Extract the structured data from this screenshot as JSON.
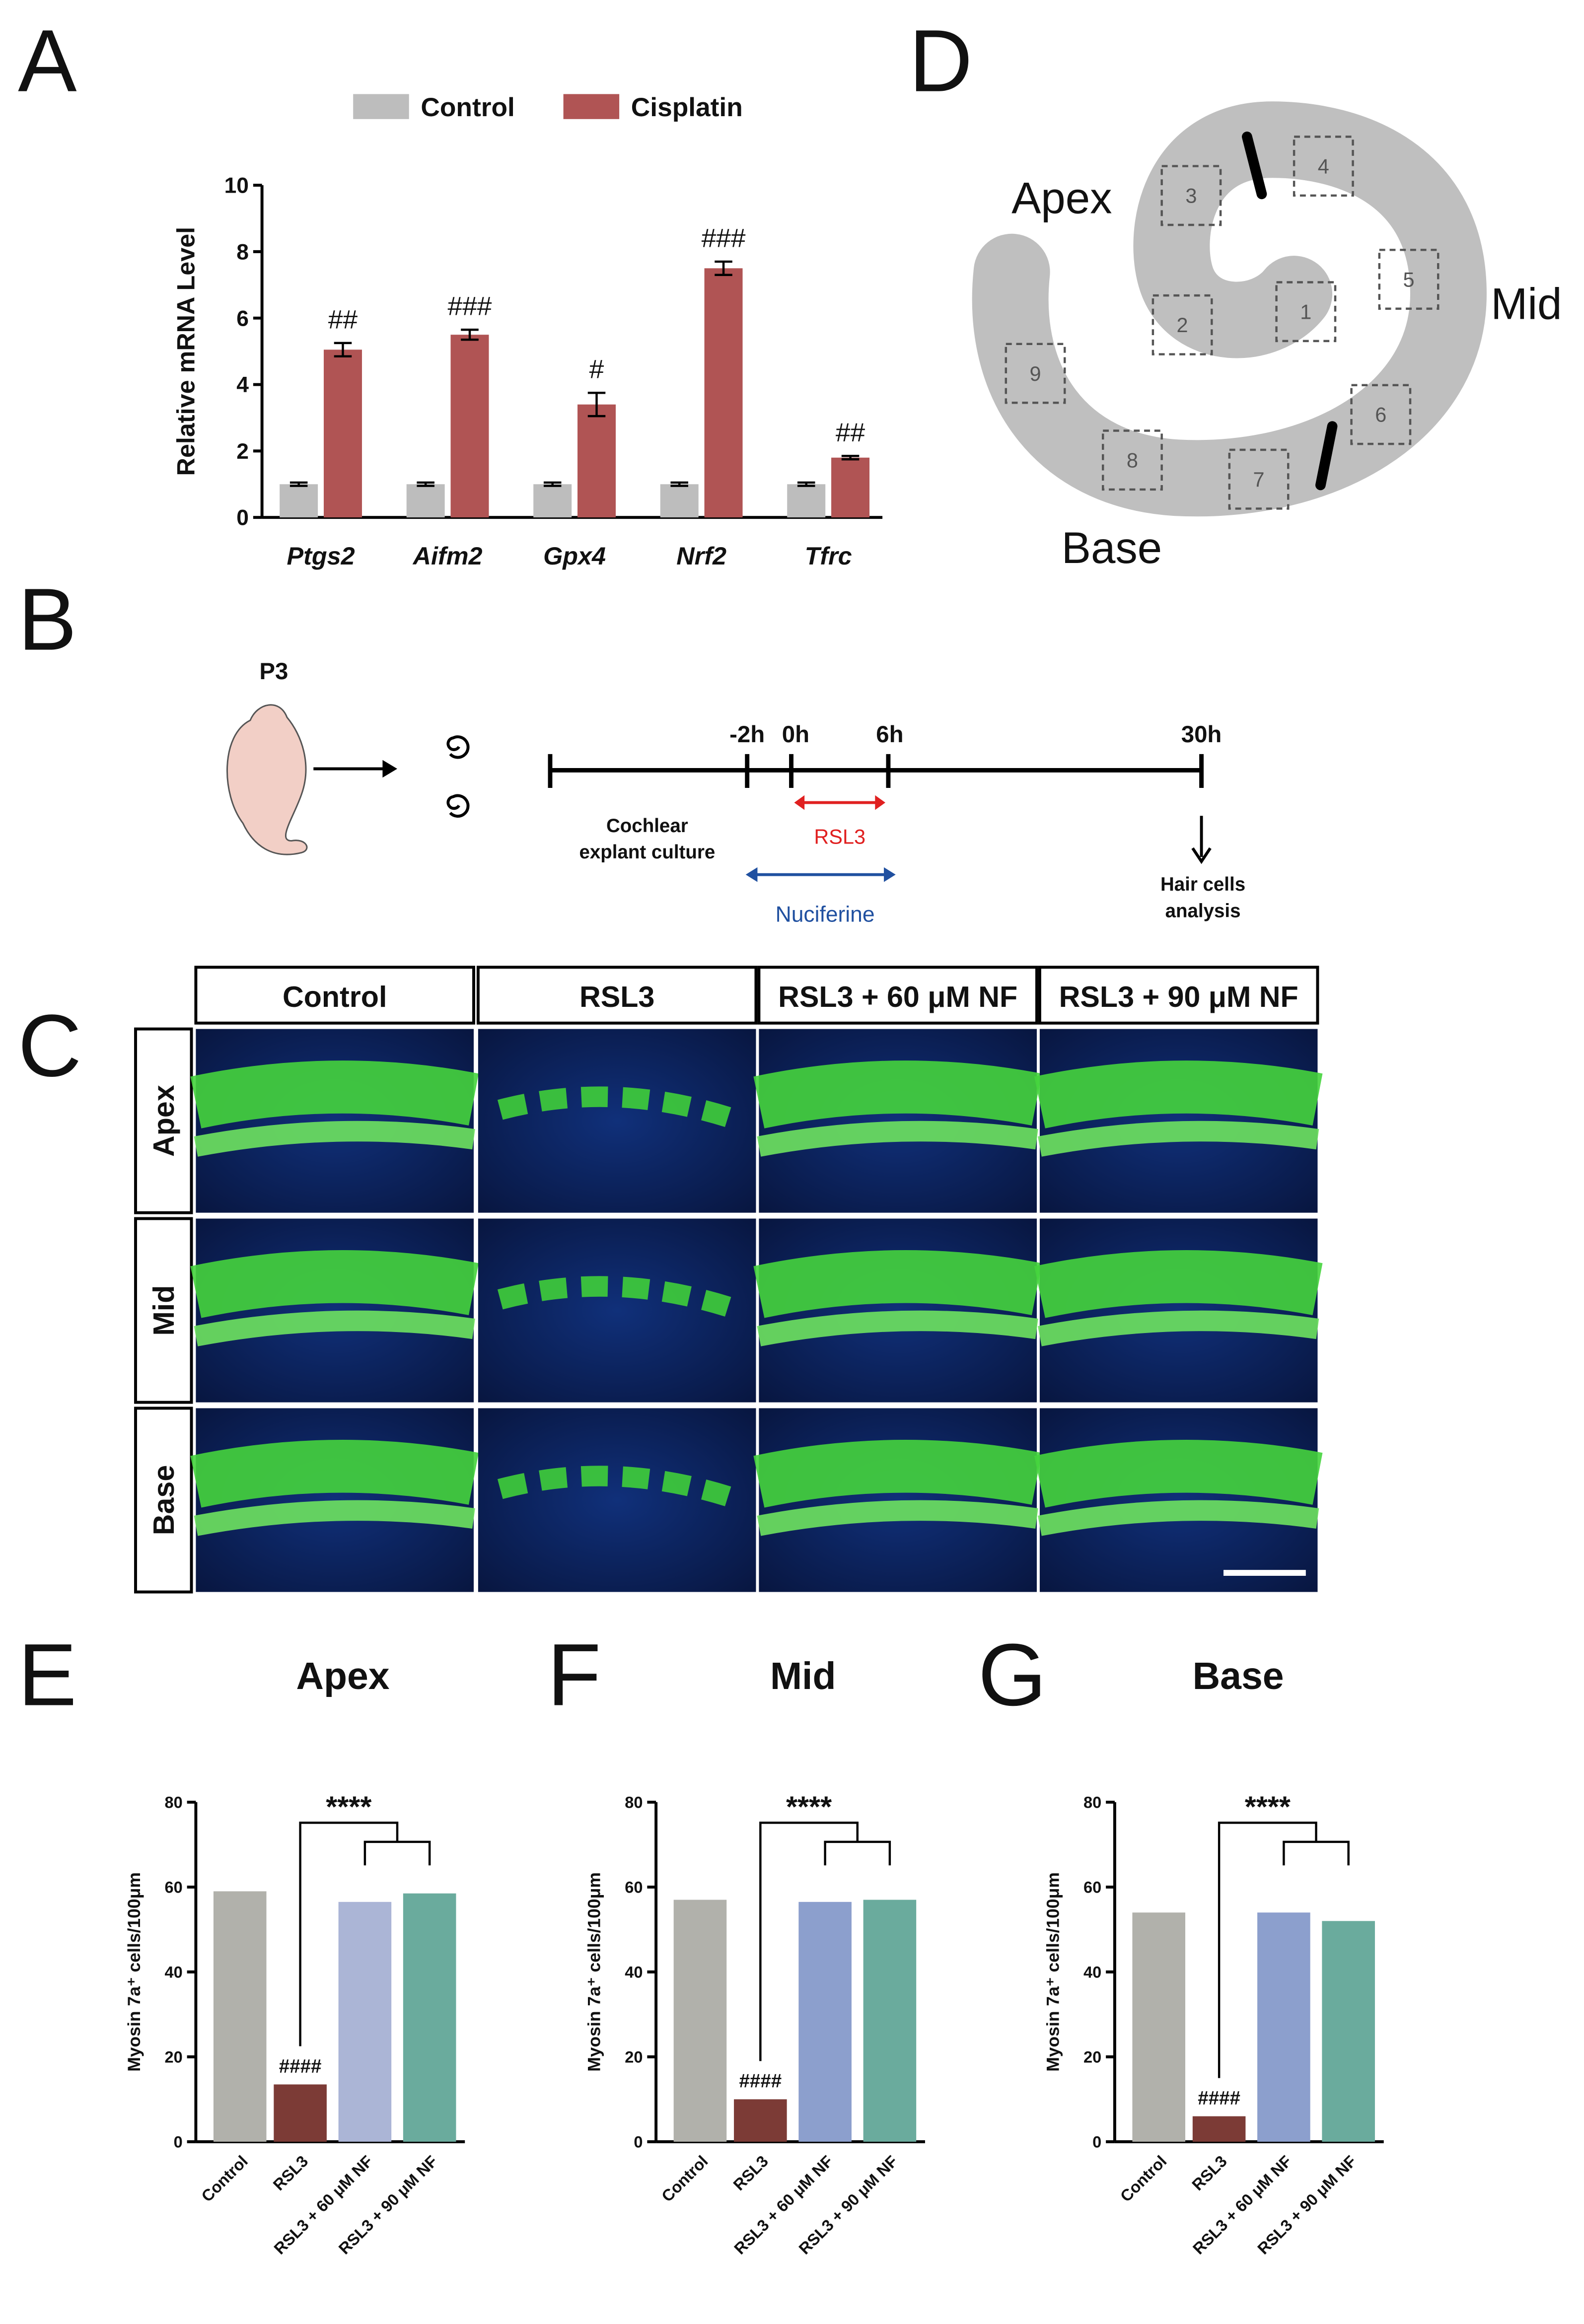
{
  "panel_labels": [
    "A",
    "B",
    "C",
    "D",
    "E",
    "F",
    "G"
  ],
  "chart_data": [
    {
      "type": "bar",
      "ylabel": "Relative  mRNA Level",
      "categories": [
        "Ptgs2",
        "Aifm2",
        "Gpx4",
        "Nrf2",
        "Tfrc"
      ],
      "series": [
        {
          "name": "Control",
          "color": "#bdbdbd",
          "values": [
            1,
            1,
            1,
            1,
            1
          ],
          "errors": [
            0.05,
            0.05,
            0.05,
            0.05,
            0.05
          ]
        },
        {
          "name": "Cisplatin",
          "color": "#b05454",
          "values": [
            5.05,
            5.5,
            3.4,
            7.5,
            1.8
          ],
          "errors": [
            0.2,
            0.15,
            0.35,
            0.2,
            0.05
          ],
          "annotations": [
            "##",
            "###",
            "#",
            "###",
            "##"
          ]
        }
      ],
      "ylim": [
        0,
        10
      ],
      "yticks": [
        0,
        2,
        4,
        6,
        8,
        10
      ],
      "legend": "top"
    },
    {
      "type": "bar",
      "title": "Apex",
      "ylabel": "Myosin 7a⁺ cells/100μm",
      "categories": [
        "Control",
        "RSL3",
        "RSL3 + 60 μM NF",
        "RSL3 + 90 μM NF"
      ],
      "values": [
        59,
        13.5,
        56.5,
        58.5
      ],
      "colors": [
        "#b1b1ab",
        "#7c3b36",
        "#abb5d6",
        "#6aab9d"
      ],
      "annotations": [
        "####",
        "****"
      ],
      "ylim": [
        0,
        80
      ],
      "yticks": [
        0,
        20,
        40,
        60,
        80
      ]
    },
    {
      "type": "bar",
      "title": "Mid",
      "ylabel": "Myosin 7a⁺ cells/100μm",
      "categories": [
        "Control",
        "RSL3",
        "RSL3 + 60 μM NF",
        "RSL3 + 90 μM NF"
      ],
      "values": [
        57,
        10,
        56.5,
        57
      ],
      "colors": [
        "#b1b1ab",
        "#7c3b36",
        "#8c9fcd",
        "#6aab9d"
      ],
      "annotations": [
        "####",
        "****"
      ],
      "ylim": [
        0,
        80
      ],
      "yticks": [
        0,
        20,
        40,
        60,
        80
      ]
    },
    {
      "type": "bar",
      "title": "Base",
      "ylabel": "Myosin 7a⁺ cells/100μm",
      "categories": [
        "Control",
        "RSL3",
        "RSL3 + 60 μM NF",
        "RSL3 + 90 μM NF"
      ],
      "values": [
        54,
        6,
        54,
        52
      ],
      "colors": [
        "#b1b1ab",
        "#7c3b36",
        "#8c9fcd",
        "#6aab9d"
      ],
      "annotations": [
        "####",
        "****"
      ],
      "ylim": [
        0,
        80
      ],
      "yticks": [
        0,
        20,
        40,
        60,
        80
      ]
    }
  ],
  "timeline": {
    "age": "P3",
    "times": [
      "-2h",
      "0h",
      "6h",
      "30h"
    ],
    "culture": [
      "Cochlear",
      "explant culture"
    ],
    "rsl3": "RSL3",
    "nuciferine": "Nuciferine",
    "analysis": [
      "Hair cells",
      "analysis"
    ]
  },
  "micrographs": {
    "columns": [
      "Control",
      "RSL3",
      "RSL3 + 60 μM NF",
      "RSL3 + 90 μM NF"
    ],
    "rows": [
      "Apex",
      "Mid",
      "Base"
    ]
  },
  "cochlea_diagram": {
    "regions": [
      "Apex",
      "Mid",
      "Base"
    ],
    "boxes": [
      "1",
      "2",
      "3",
      "4",
      "5",
      "6",
      "7",
      "8",
      "9"
    ]
  }
}
